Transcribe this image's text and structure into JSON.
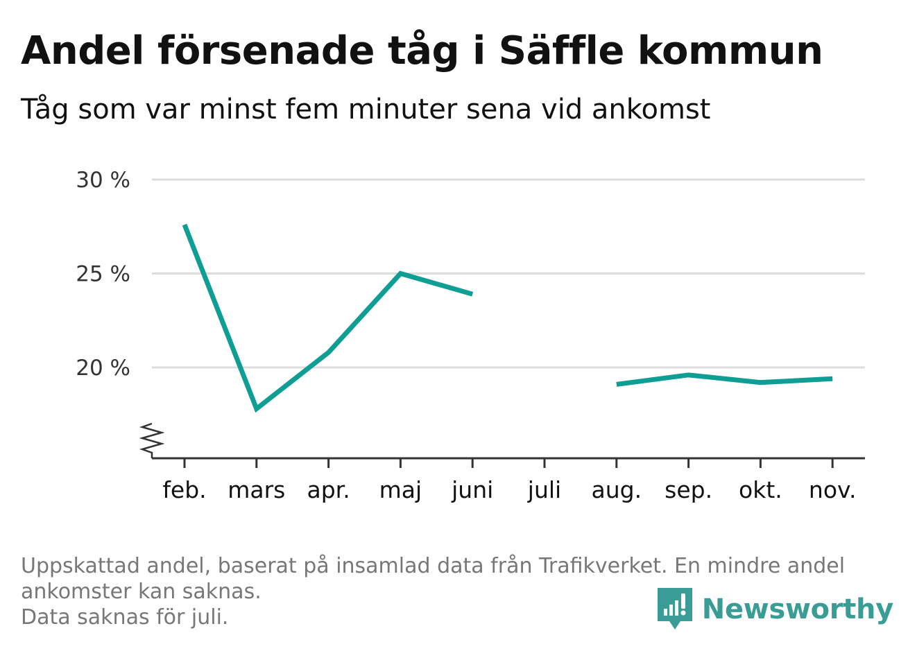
{
  "title": "Andel försenade tåg i Säffle kommun",
  "subtitle": "Tåg som var minst fem minuter sena vid ankomst",
  "footnote": {
    "line1": "Uppskattad andel, baserat på insamlad data från Trafikverket. En mindre andel",
    "line2": "ankomster kan saknas.",
    "line3": "Data saknas för juli."
  },
  "brand": {
    "name": "Newsworthy",
    "icon": "newsworthy-logo-icon",
    "color": "#3a9d95"
  },
  "colors": {
    "line": "#0f9e94",
    "grid": "#dddddd",
    "axis": "#333333"
  },
  "chart_data": {
    "type": "line",
    "categories": [
      "feb.",
      "mars",
      "apr.",
      "maj",
      "juni",
      "juli",
      "aug.",
      "sep.",
      "okt.",
      "nov."
    ],
    "series": [
      {
        "values": [
          27.6,
          17.8,
          20.8,
          25.0,
          23.9,
          null,
          19.1,
          19.6,
          19.2,
          19.4
        ]
      }
    ],
    "y_ticks": [
      20,
      25,
      30
    ],
    "y_tick_labels": [
      "20 %",
      "25 %",
      "30 %"
    ],
    "ylim": [
      15.2,
      30
    ],
    "y_axis_break": true,
    "grid": "horizontal",
    "xlabel": "",
    "ylabel": ""
  }
}
